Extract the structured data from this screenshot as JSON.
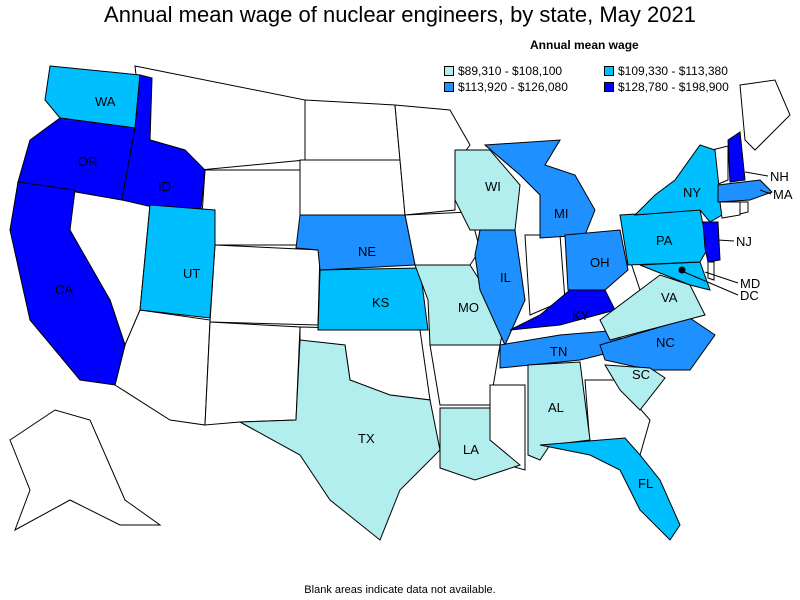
{
  "title": "Annual mean wage of nuclear engineers, by state, May 2021",
  "legend": {
    "title": "Annual mean wage",
    "items": [
      {
        "label": "$89,310 - $108,100",
        "color": "#b2eeee"
      },
      {
        "label": "$109,330 - $113,380",
        "color": "#00bfff"
      },
      {
        "label": "$113,920 - $126,080",
        "color": "#1e90ff"
      },
      {
        "label": "$128,780 - $198,900",
        "color": "#0000ff"
      }
    ]
  },
  "footnote": "Blank areas indicate data not available.",
  "states": {
    "WA": "WA",
    "OR": "OR",
    "ID": "ID",
    "CA": "CA",
    "UT": "UT",
    "NE": "NE",
    "KS": "KS",
    "TX": "TX",
    "MO": "MO",
    "LA": "LA",
    "WI": "WI",
    "IL": "IL",
    "MI": "MI",
    "TN": "TN",
    "KY": "KY",
    "AL": "AL",
    "OH": "OH",
    "FL": "FL",
    "NC": "NC",
    "SC": "SC",
    "VA": "VA",
    "PA": "PA",
    "NY": "NY",
    "NJ": "NJ",
    "NH": "NH",
    "MA": "MA",
    "MD": "MD",
    "DC": "DC"
  }
}
